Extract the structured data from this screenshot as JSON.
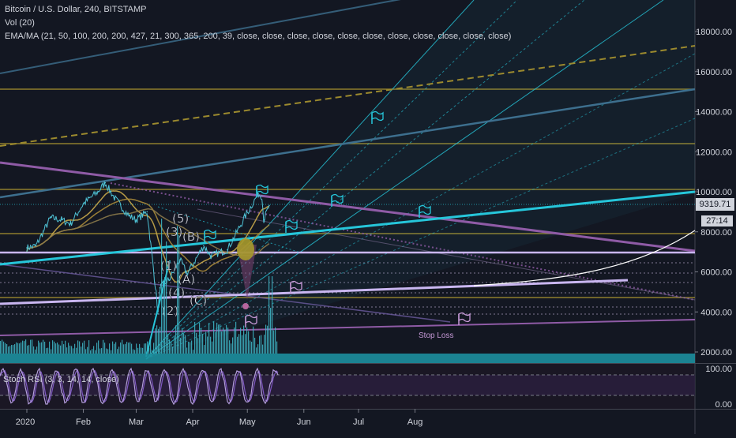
{
  "legend": {
    "title": "Bitcoin / U.S. Dollar, 240, BITSTAMP",
    "vol": "Vol (20)",
    "ema": "EMA/MA (21, 50, 100, 200, 200, 427, 21, 300, 365, 200, 39, close, close, close, close, close, close, close, close, close, close, close)"
  },
  "price_box": "9319.71",
  "time_box": "27:14",
  "stoch_label": "Stoch RSI (3, 3, 14, 14, close)",
  "stop_loss_label": "Stop Loss",
  "colors": {
    "background": "#131722",
    "grid": "#2a2e39",
    "gold": "#9c8a2e",
    "teal": "#26c6da",
    "purple": "#9c6fb5",
    "lavender": "#c9b6f0",
    "volume": "#3fb8c8",
    "stoch": "#b39ddb"
  },
  "chart_data": [
    {
      "type": "line",
      "title": "Bitcoin / U.S. Dollar, 240, BITSTAMP",
      "x_tick_labels": [
        "2020",
        "Feb",
        "Mar",
        "Apr",
        "May",
        "Jun",
        "Jul",
        "Aug"
      ],
      "y_tick_labels": [
        "2000.00",
        "4000.00",
        "6000.00",
        "8000.00",
        "10000.00",
        "12000.00",
        "14000.00",
        "16000.00",
        "18000.00"
      ],
      "ylim": [
        0,
        20000
      ],
      "last_price": 9319.71,
      "price_series": [
        {
          "date": "2020-01-01",
          "value": 7200
        },
        {
          "date": "2020-01-06",
          "value": 7300
        },
        {
          "date": "2020-01-10",
          "value": 8000
        },
        {
          "date": "2020-01-14",
          "value": 8700
        },
        {
          "date": "2020-01-20",
          "value": 8600
        },
        {
          "date": "2020-01-25",
          "value": 8400
        },
        {
          "date": "2020-02-01",
          "value": 9400
        },
        {
          "date": "2020-02-09",
          "value": 10000
        },
        {
          "date": "2020-02-13",
          "value": 10450
        },
        {
          "date": "2020-02-18",
          "value": 9700
        },
        {
          "date": "2020-02-26",
          "value": 8800
        },
        {
          "date": "2020-03-01",
          "value": 8600
        },
        {
          "date": "2020-03-07",
          "value": 9000
        },
        {
          "date": "2020-03-12",
          "value": 4900
        },
        {
          "date": "2020-03-13",
          "value": 3900
        },
        {
          "date": "2020-03-14",
          "value": 5200
        },
        {
          "date": "2020-03-19",
          "value": 5600
        },
        {
          "date": "2020-03-25",
          "value": 6600
        },
        {
          "date": "2020-03-29",
          "value": 5900
        },
        {
          "date": "2020-04-07",
          "value": 7300
        },
        {
          "date": "2020-04-11",
          "value": 6800
        },
        {
          "date": "2020-04-20",
          "value": 7100
        },
        {
          "date": "2020-04-30",
          "value": 8800
        },
        {
          "date": "2020-05-07",
          "value": 9900
        },
        {
          "date": "2020-05-09",
          "value": 9800
        },
        {
          "date": "2020-05-10",
          "value": 8600
        },
        {
          "date": "2020-05-13",
          "value": 9319.71
        }
      ],
      "wave_labels": [
        "(5)",
        "(3)",
        "(B)",
        "(1)",
        "(A)",
        "(4)",
        "(C)",
        "(2)"
      ],
      "annotations": [
        "Stop Loss"
      ],
      "grid": false,
      "legend": "top-left"
    },
    {
      "type": "bar",
      "title": "Vol (20)"
    },
    {
      "type": "line",
      "title": "Stoch RSI (3, 3, 14, 14, close)",
      "y_tick_labels": [
        "100.00",
        "0.00"
      ],
      "ylim": [
        0,
        100
      ]
    }
  ]
}
